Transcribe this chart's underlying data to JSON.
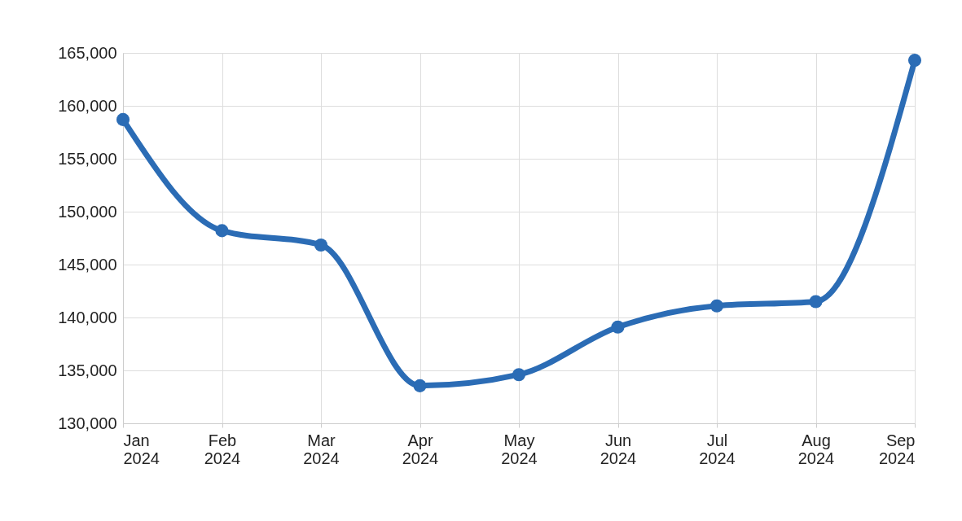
{
  "chart_data": {
    "type": "line",
    "categories": [
      "Jan 2024",
      "Feb 2024",
      "Mar 2024",
      "Apr 2024",
      "May 2024",
      "Jun 2024",
      "Jul 2024",
      "Aug 2024",
      "Sep 2024"
    ],
    "series": [
      {
        "color": "#2b6cb5",
        "values": [
          158700,
          148200,
          146850,
          133550,
          134600,
          139100,
          141100,
          141500,
          164300
        ]
      }
    ],
    "ylim": [
      130000,
      165000
    ],
    "yticks": [
      {
        "value": 130000,
        "label": "130,000"
      },
      {
        "value": 135000,
        "label": "135,000"
      },
      {
        "value": 140000,
        "label": "140,000"
      },
      {
        "value": 145000,
        "label": "145,000"
      },
      {
        "value": 150000,
        "label": "150,000"
      },
      {
        "value": 155000,
        "label": "155,000"
      },
      {
        "value": 160000,
        "label": "160,000"
      },
      {
        "value": 165000,
        "label": "165,000"
      }
    ],
    "grid": true,
    "marker": "circle",
    "line_style": "solid"
  }
}
